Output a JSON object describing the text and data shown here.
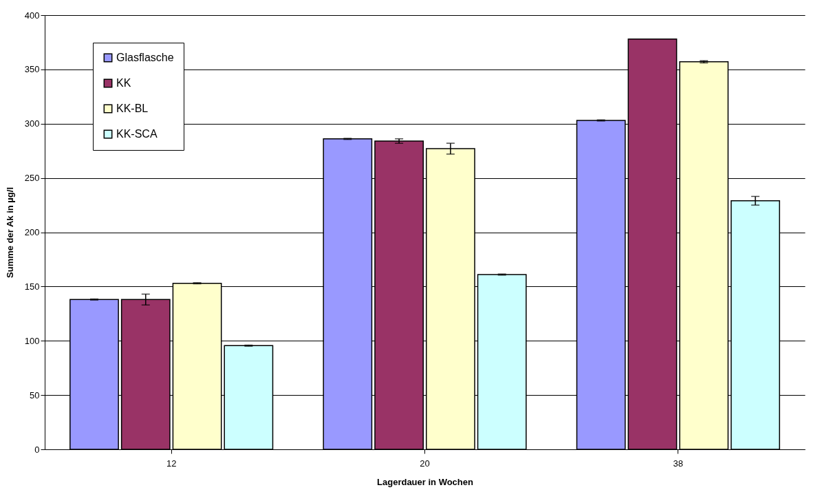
{
  "chart_data": {
    "type": "bar",
    "xlabel": "Lagerdauer in Wochen",
    "ylabel": "Summe der Ak in µg/l",
    "categories": [
      "12",
      "20",
      "38"
    ],
    "series": [
      {
        "name": "Glasflasche",
        "color": "#9999ff",
        "values": [
          138,
          286,
          303
        ],
        "errors": [
          0.5,
          0.5,
          0.5
        ]
      },
      {
        "name": "KK",
        "color": "#993366",
        "values": [
          138,
          284,
          378
        ],
        "errors": [
          5,
          2,
          null
        ]
      },
      {
        "name": "KK-BL",
        "color": "#ffffcc",
        "values": [
          153,
          277,
          357
        ],
        "errors": [
          0.5,
          5,
          1
        ]
      },
      {
        "name": "KK-SCA",
        "color": "#ccffff",
        "values": [
          95.5,
          161,
          229
        ],
        "errors": [
          0.5,
          0.5,
          4
        ]
      }
    ],
    "ylim": [
      0,
      400
    ],
    "yticks": [
      0,
      50,
      100,
      150,
      200,
      250,
      300,
      350,
      400
    ],
    "grid": "y",
    "legend": "top left"
  }
}
